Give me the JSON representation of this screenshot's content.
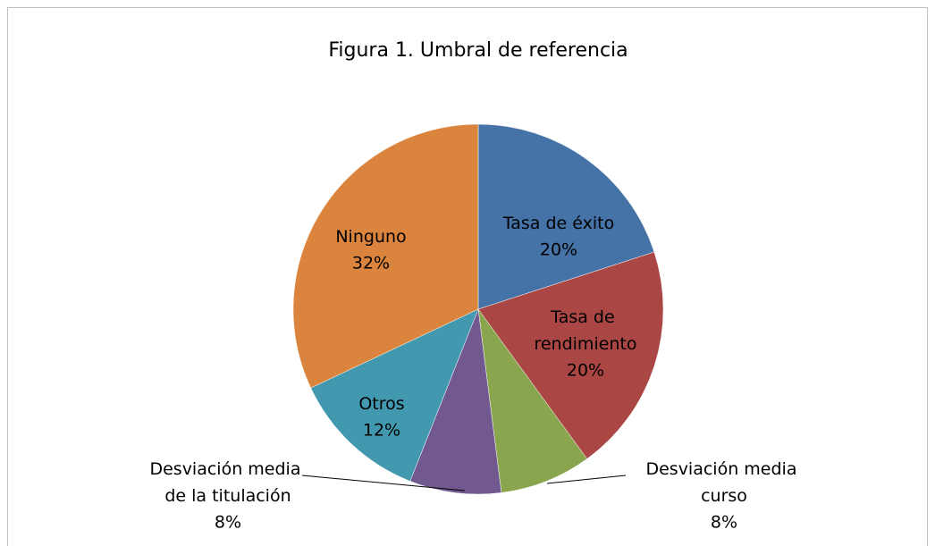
{
  "chart_data": {
    "type": "pie",
    "title": "Figura 1. Umbral de referencia",
    "categories": [
      "Tasa de éxito",
      "Tasa de rendimiento",
      "Desviación media curso",
      "Desviación media de la titulación",
      "Otros",
      "Ninguno"
    ],
    "values": [
      20,
      20,
      8,
      8,
      12,
      32
    ],
    "value_labels": [
      "20%",
      "20%",
      "8%",
      "8%",
      "12%",
      "32%"
    ],
    "colors": [
      "#4572a7",
      "#aa4643",
      "#89a54e",
      "#71588f",
      "#4198af",
      "#db843d"
    ]
  }
}
